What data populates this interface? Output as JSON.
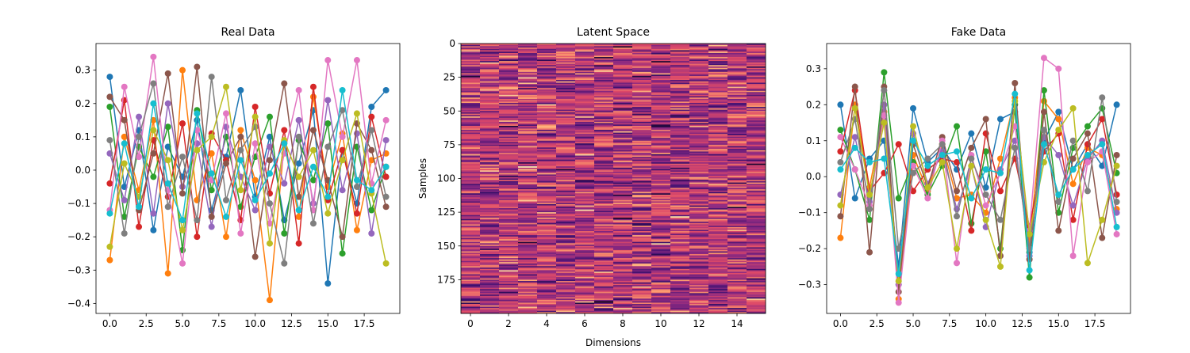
{
  "chart_data": [
    {
      "type": "line",
      "title": "Real Data",
      "xlabel": "",
      "ylabel": "",
      "xlim": [
        -0.95,
        19.95
      ],
      "ylim": [
        -0.43,
        0.38
      ],
      "xticks": [
        0.0,
        2.5,
        5.0,
        7.5,
        10.0,
        12.5,
        15.0,
        17.5
      ],
      "xtick_labels": [
        "0.0",
        "2.5",
        "5.0",
        "7.5",
        "10.0",
        "12.5",
        "15.0",
        "17.5"
      ],
      "yticks": [
        -0.4,
        -0.3,
        -0.2,
        -0.1,
        0.0,
        0.1,
        0.2,
        0.3
      ],
      "ytick_labels": [
        "−0.4",
        "−0.3",
        "−0.2",
        "−0.1",
        "0.0",
        "0.1",
        "0.2",
        "0.3"
      ],
      "x": [
        0,
        1,
        2,
        3,
        4,
        5,
        6,
        7,
        8,
        9,
        10,
        11,
        12,
        13,
        14,
        15,
        16,
        17,
        18,
        19
      ],
      "markers": true,
      "series": [
        {
          "color": "#1f77b4",
          "values": [
            0.28,
            -0.05,
            0.12,
            -0.18,
            0.07,
            -0.02,
            0.15,
            -0.12,
            0.04,
            0.24,
            -0.08,
            0.1,
            -0.15,
            0.02,
            0.18,
            -0.34,
            0.06,
            -0.1,
            0.19,
            0.24
          ]
        },
        {
          "color": "#ff7f0e",
          "values": [
            -0.27,
            0.1,
            -0.06,
            0.15,
            -0.31,
            0.3,
            -0.09,
            0.05,
            -0.2,
            0.12,
            -0.03,
            -0.39,
            0.08,
            -0.14,
            0.22,
            -0.05,
            0.11,
            -0.18,
            0.03,
            0.05
          ]
        },
        {
          "color": "#2ca02c",
          "values": [
            0.19,
            -0.14,
            0.07,
            -0.02,
            0.13,
            -0.24,
            0.18,
            -0.06,
            0.1,
            -0.11,
            0.04,
            0.16,
            -0.19,
            0.09,
            -0.03,
            0.14,
            -0.25,
            0.07,
            -0.12,
            0.01
          ]
        },
        {
          "color": "#d62728",
          "values": [
            -0.04,
            0.21,
            -0.17,
            0.09,
            -0.08,
            0.14,
            -0.2,
            0.11,
            0.03,
            -0.15,
            0.19,
            -0.07,
            0.12,
            -0.22,
            0.25,
            -0.09,
            0.06,
            -0.13,
            0.16,
            -0.02
          ]
        },
        {
          "color": "#9467bd",
          "values": [
            0.05,
            -0.09,
            0.16,
            -0.13,
            0.2,
            -0.05,
            0.08,
            -0.17,
            0.13,
            -0.02,
            -0.12,
            0.07,
            -0.04,
            0.15,
            -0.1,
            0.21,
            -0.06,
            0.11,
            -0.19,
            0.09
          ]
        },
        {
          "color": "#8c564b",
          "values": [
            0.22,
            0.15,
            -0.12,
            0.05,
            0.29,
            -0.07,
            0.31,
            -0.14,
            0.02,
            0.1,
            -0.26,
            0.03,
            0.26,
            -0.08,
            0.12,
            -0.03,
            -0.2,
            0.14,
            0.06,
            -0.11
          ]
        },
        {
          "color": "#e377c2",
          "values": [
            -0.12,
            0.25,
            0.04,
            0.34,
            -0.06,
            -0.28,
            0.12,
            -0.03,
            0.17,
            -0.19,
            0.08,
            -0.16,
            0.05,
            0.24,
            -0.12,
            0.33,
            0.1,
            0.33,
            -0.04,
            0.15
          ]
        },
        {
          "color": "#7f7f7f",
          "values": [
            0.09,
            -0.19,
            0.1,
            0.26,
            -0.11,
            0.04,
            -0.15,
            0.28,
            -0.09,
            0.06,
            0.13,
            -0.1,
            -0.28,
            0.1,
            -0.16,
            0.07,
            0.18,
            -0.05,
            0.12,
            -0.08
          ]
        },
        {
          "color": "#bcbd22",
          "values": [
            -0.23,
            0.02,
            -0.08,
            0.12,
            0.03,
            -0.18,
            0.06,
            0.1,
            0.25,
            -0.06,
            0.16,
            -0.22,
            0.09,
            -0.02,
            0.06,
            -0.13,
            0.03,
            0.17,
            -0.07,
            -0.28
          ]
        },
        {
          "color": "#17becf",
          "values": [
            -0.13,
            0.08,
            -0.11,
            0.2,
            -0.04,
            -0.15,
            0.17,
            -0.01,
            -0.14,
            0.03,
            -0.09,
            -0.01,
            0.08,
            -0.12,
            0.01,
            -0.08,
            0.24,
            -0.03,
            -0.06,
            0.01
          ]
        }
      ]
    },
    {
      "type": "heatmap",
      "title": "Latent Space",
      "xlabel": "Dimensions",
      "ylabel": "Samples",
      "rows": 200,
      "cols": 16,
      "xticks": [
        0,
        2,
        4,
        6,
        8,
        10,
        12,
        14
      ],
      "xtick_labels": [
        "0",
        "2",
        "4",
        "6",
        "8",
        "10",
        "12",
        "14"
      ],
      "yticks": [
        0,
        25,
        50,
        75,
        100,
        125,
        150,
        175
      ],
      "ytick_labels": [
        "0",
        "25",
        "50",
        "75",
        "100",
        "125",
        "150",
        "175"
      ],
      "colormap": [
        "#000004",
        "#3b0f70",
        "#8c2981",
        "#de4968",
        "#fe9f6d",
        "#fcfdbf"
      ]
    },
    {
      "type": "line",
      "title": "Fake Data",
      "xlabel": "",
      "ylabel": "",
      "xlim": [
        -0.95,
        19.95
      ],
      "ylim": [
        -0.38,
        0.37
      ],
      "xticks": [
        0.0,
        2.5,
        5.0,
        7.5,
        10.0,
        12.5,
        15.0,
        17.5
      ],
      "xtick_labels": [
        "0.0",
        "2.5",
        "5.0",
        "7.5",
        "10.0",
        "12.5",
        "15.0",
        "17.5"
      ],
      "yticks": [
        -0.3,
        -0.2,
        -0.1,
        0.0,
        0.1,
        0.2,
        0.3
      ],
      "ytick_labels": [
        "−0.3",
        "−0.2",
        "−0.1",
        "0.0",
        "0.1",
        "0.2",
        "0.3"
      ],
      "x": [
        0,
        1,
        2,
        3,
        4,
        5,
        6,
        7,
        8,
        9,
        10,
        11,
        12,
        13,
        14,
        15,
        16,
        17,
        18,
        19
      ],
      "markers": true,
      "series": [
        {
          "color": "#1f77b4",
          "values": [
            0.2,
            -0.06,
            0.05,
            0.1,
            -0.25,
            0.19,
            0.04,
            0.08,
            0.02,
            0.12,
            -0.03,
            0.16,
            0.18,
            -0.21,
            0.1,
            0.18,
            0.02,
            0.09,
            0.03,
            0.2
          ]
        },
        {
          "color": "#ff7f0e",
          "values": [
            -0.17,
            0.2,
            -0.03,
            0.18,
            -0.34,
            0.06,
            -0.04,
            0.09,
            -0.06,
            -0.05,
            -0.1,
            0.05,
            0.22,
            -0.18,
            0.21,
            0.16,
            -0.02,
            0.08,
            0.06,
            -0.09
          ]
        },
        {
          "color": "#2ca02c",
          "values": [
            0.13,
            0.02,
            -0.12,
            0.29,
            -0.06,
            0.04,
            -0.05,
            0.03,
            0.14,
            -0.13,
            0.07,
            -0.2,
            0.2,
            -0.28,
            0.24,
            -0.1,
            0.08,
            0.14,
            0.19,
            0.01
          ]
        },
        {
          "color": "#d62728",
          "values": [
            0.07,
            0.24,
            -0.04,
            0.01,
            0.09,
            -0.04,
            0.02,
            0.05,
            0.04,
            -0.15,
            0.12,
            -0.04,
            0.05,
            -0.14,
            0.07,
            0.12,
            -0.12,
            0.09,
            0.16,
            -0.05
          ]
        },
        {
          "color": "#9467bd",
          "values": [
            -0.05,
            0.11,
            -0.07,
            0.2,
            -0.3,
            0.12,
            -0.02,
            0.07,
            -0.09,
            0.03,
            -0.14,
            0.02,
            0.1,
            -0.22,
            0.11,
            0.06,
            -0.08,
            0.05,
            0.1,
            -0.1
          ]
        },
        {
          "color": "#8c564b",
          "values": [
            -0.11,
            0.25,
            -0.21,
            0.25,
            -0.32,
            0.09,
            -0.03,
            0.11,
            -0.04,
            0.08,
            0.16,
            -0.22,
            0.26,
            -0.23,
            0.18,
            -0.15,
            0.05,
            0.12,
            -0.17,
            0.06
          ]
        },
        {
          "color": "#e377c2",
          "values": [
            0.11,
            0.02,
            -0.08,
            0.17,
            -0.35,
            0.03,
            -0.06,
            0.1,
            -0.24,
            0.06,
            -0.08,
            0.01,
            0.14,
            -0.15,
            0.33,
            0.3,
            -0.22,
            0.04,
            0.07,
            -0.16
          ]
        },
        {
          "color": "#7f7f7f",
          "values": [
            0.04,
            0.16,
            -0.09,
            0.24,
            -0.2,
            0.01,
            0.05,
            0.09,
            -0.11,
            0.05,
            -0.05,
            -0.12,
            0.08,
            -0.2,
            0.13,
            -0.07,
            0.1,
            -0.04,
            0.22,
            -0.07
          ]
        },
        {
          "color": "#bcbd22",
          "values": [
            -0.08,
            0.19,
            -0.05,
            0.15,
            -0.29,
            0.14,
            -0.03,
            0.04,
            -0.2,
            0.03,
            -0.12,
            -0.25,
            0.21,
            -0.16,
            0.04,
            0.13,
            0.19,
            -0.24,
            -0.12,
            0.03
          ]
        },
        {
          "color": "#17becf",
          "values": [
            0.02,
            0.08,
            0.04,
            0.05,
            -0.27,
            0.1,
            0.03,
            0.06,
            0.07,
            -0.06,
            0.02,
            0.01,
            0.23,
            -0.26,
            0.09,
            -0.05,
            0.02,
            0.06,
            0.09,
            -0.14
          ]
        }
      ]
    }
  ]
}
